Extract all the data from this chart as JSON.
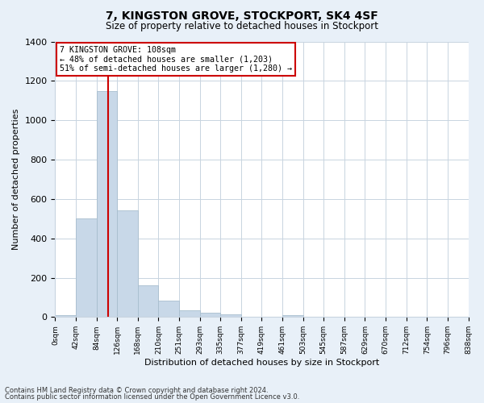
{
  "title": "7, KINGSTON GROVE, STOCKPORT, SK4 4SF",
  "subtitle": "Size of property relative to detached houses in Stockport",
  "xlabel": "Distribution of detached houses by size in Stockport",
  "ylabel": "Number of detached properties",
  "bar_color": "#c8d8e8",
  "bar_edge_color": "#a8bece",
  "bin_labels": [
    "0sqm",
    "42sqm",
    "84sqm",
    "126sqm",
    "168sqm",
    "210sqm",
    "251sqm",
    "293sqm",
    "335sqm",
    "377sqm",
    "419sqm",
    "461sqm",
    "503sqm",
    "545sqm",
    "587sqm",
    "629sqm",
    "670sqm",
    "712sqm",
    "754sqm",
    "796sqm",
    "838sqm"
  ],
  "counts": [
    10,
    500,
    1150,
    540,
    160,
    85,
    35,
    20,
    15,
    0,
    0,
    10,
    0,
    0,
    0,
    0,
    0,
    0,
    0,
    0
  ],
  "ylim": [
    0,
    1400
  ],
  "yticks": [
    0,
    200,
    400,
    600,
    800,
    1000,
    1200,
    1400
  ],
  "property_label": "7 KINGSTON GROVE: 108sqm",
  "annotation_line1": "← 48% of detached houses are smaller (1,203)",
  "annotation_line2": "51% of semi-detached houses are larger (1,280) →",
  "vline_bin": 2.57,
  "vline_color": "#cc0000",
  "box_color": "#ffffff",
  "box_edge_color": "#cc0000",
  "footnote1": "Contains HM Land Registry data © Crown copyright and database right 2024.",
  "footnote2": "Contains public sector information licensed under the Open Government Licence v3.0.",
  "background_color": "#e8f0f8",
  "plot_background_color": "#ffffff",
  "grid_color": "#c8d4e0"
}
